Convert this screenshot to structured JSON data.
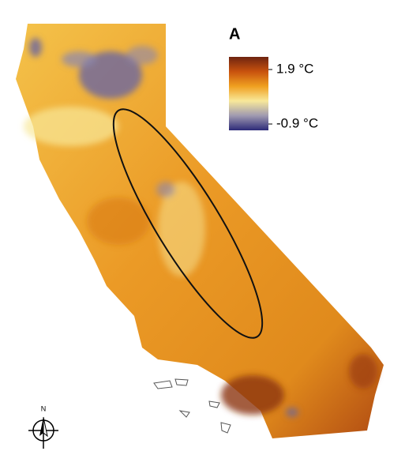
{
  "panel_label": "A",
  "legend": {
    "ticks": [
      {
        "value": 1.9,
        "label": "1.9 °C"
      },
      {
        "value": -0.9,
        "label": "-0.9 °C"
      }
    ],
    "colors": [
      "#6e2410",
      "#c8520e",
      "#f0a020",
      "#f8e89a",
      "#a09ab0",
      "#2c2a78"
    ]
  },
  "compass": "N"
}
